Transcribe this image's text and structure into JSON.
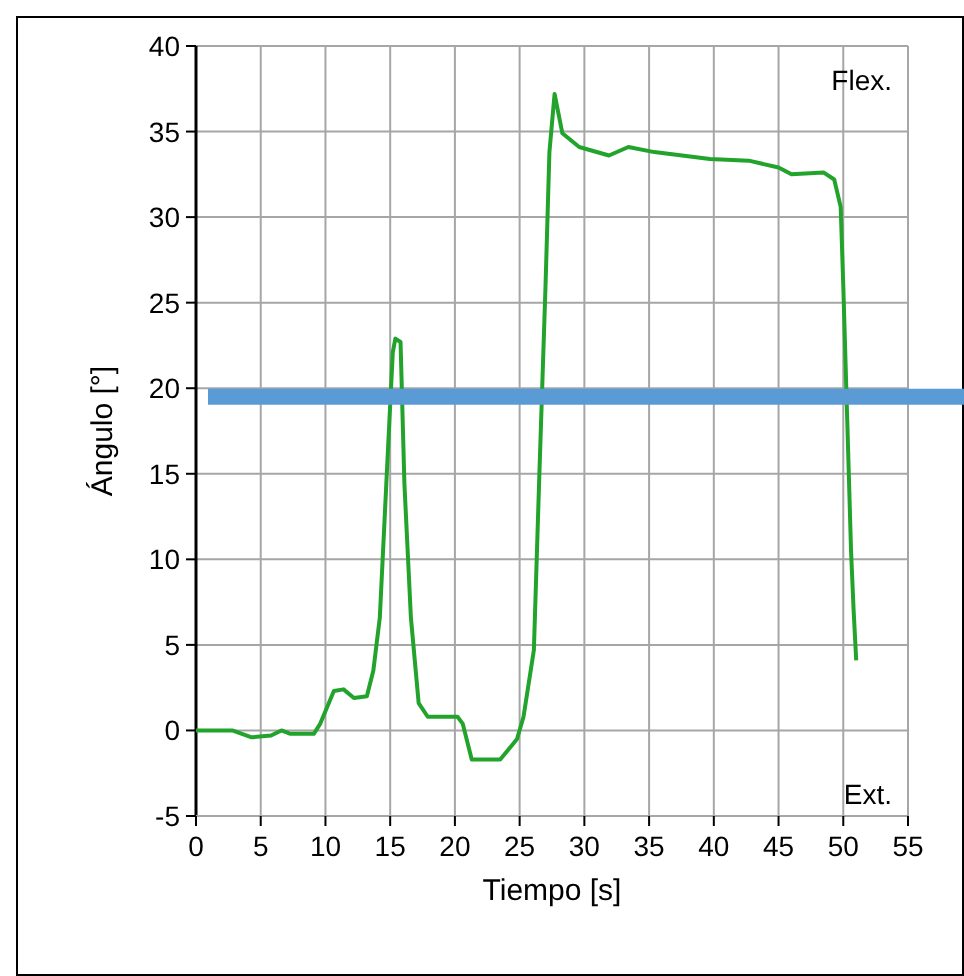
{
  "chart_data": {
    "type": "line",
    "xlabel": "Tiempo [s]",
    "ylabel": "Ángulo [°]",
    "xlim": [
      0,
      55
    ],
    "xticks": [
      0,
      5,
      10,
      15,
      20,
      25,
      30,
      35,
      40,
      45,
      50,
      55
    ],
    "ylim": [
      -5,
      40
    ],
    "yticks": [
      -5,
      0,
      5,
      10,
      15,
      20,
      25,
      30,
      35,
      40
    ],
    "grid": true,
    "annotations": [
      "Flex.",
      "Ext."
    ],
    "ref_lines": [
      {
        "axis": "y",
        "value": 19.5,
        "color": "#5b9bd5"
      }
    ],
    "series": [
      {
        "color": "#22a32b",
        "x": [
          0,
          2.8,
          4.3,
          5.8,
          6.6,
          7.3,
          9.1,
          9.6,
          10.65,
          11.4,
          12.2,
          13.2,
          13.7,
          14.2,
          14.7,
          15.2,
          15.4,
          15.8,
          16.1,
          16.6,
          17.2,
          17.9,
          18.9,
          20.2,
          20.6,
          21.3,
          23.5,
          24.8,
          25.3,
          26.1,
          26.5,
          27.0,
          27.3,
          27.7,
          28.3,
          29.6,
          31.9,
          33.4,
          35.4,
          39.7,
          42.7,
          45.0,
          46.0,
          48.5,
          49.3,
          49.8,
          50.0,
          50.3,
          50.6,
          50.8,
          51.0
        ],
        "values": [
          0,
          0,
          -0.4,
          -0.3,
          0,
          -0.2,
          -0.2,
          0.4,
          2.3,
          2.4,
          1.9,
          2.0,
          3.5,
          6.6,
          14.4,
          22.1,
          22.9,
          22.7,
          14.4,
          6.6,
          1.6,
          0.8,
          0.8,
          0.8,
          0.4,
          -1.7,
          -1.7,
          -0.5,
          0.8,
          4.7,
          14.4,
          26,
          33.8,
          37.2,
          34.9,
          34.1,
          33.6,
          34.1,
          33.8,
          33.4,
          33.3,
          32.9,
          32.5,
          32.6,
          32.2,
          30.6,
          26,
          18.3,
          10.5,
          7.0,
          4.1
        ]
      }
    ]
  }
}
